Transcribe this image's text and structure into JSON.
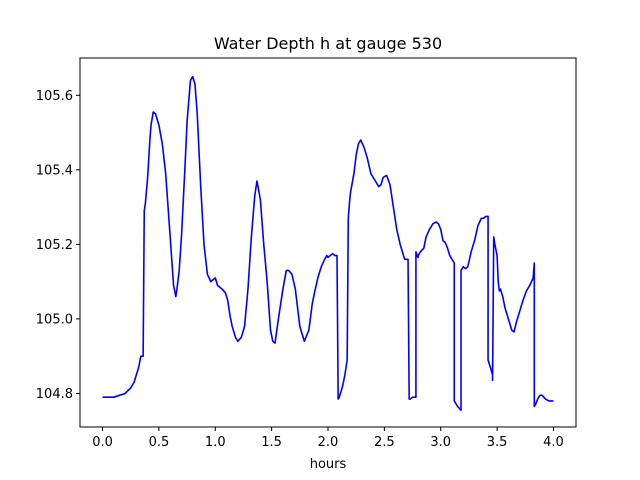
{
  "chart_data": {
    "type": "line",
    "title": "Water Depth h at gauge 530",
    "xlabel": "hours",
    "ylabel": "",
    "xlim": [
      -0.2,
      4.2
    ],
    "ylim": [
      104.71,
      105.7
    ],
    "xticks": [
      0.0,
      0.5,
      1.0,
      1.5,
      2.0,
      2.5,
      3.0,
      3.5,
      4.0
    ],
    "xtick_labels": [
      "0.0",
      "0.5",
      "1.0",
      "1.5",
      "2.0",
      "2.5",
      "3.0",
      "3.5",
      "4.0"
    ],
    "yticks": [
      104.8,
      105.0,
      105.2,
      105.4,
      105.6
    ],
    "ytick_labels": [
      "104.8",
      "105.0",
      "105.2",
      "105.4",
      "105.6"
    ],
    "grid": false,
    "series": [
      {
        "color": "#0000ff",
        "x": [
          0.0,
          0.1,
          0.15,
          0.2,
          0.25,
          0.28,
          0.3,
          0.32,
          0.34,
          0.36,
          0.37,
          0.38,
          0.4,
          0.42,
          0.43,
          0.45,
          0.47,
          0.5,
          0.53,
          0.56,
          0.6,
          0.63,
          0.65,
          0.66,
          0.68,
          0.7,
          0.73,
          0.75,
          0.78,
          0.8,
          0.82,
          0.84,
          0.87,
          0.9,
          0.93,
          0.96,
          1.0,
          1.02,
          1.04,
          1.06,
          1.09,
          1.11,
          1.13,
          1.15,
          1.18,
          1.2,
          1.23,
          1.26,
          1.29,
          1.32,
          1.35,
          1.37,
          1.4,
          1.43,
          1.46,
          1.49,
          1.51,
          1.53,
          1.56,
          1.6,
          1.63,
          1.65,
          1.68,
          1.71,
          1.75,
          1.79,
          1.83,
          1.86,
          1.88,
          1.91,
          1.94,
          1.97,
          1.99,
          2.0,
          2.02,
          2.04,
          2.06,
          2.08,
          2.09,
          2.1,
          2.11,
          2.13,
          2.15,
          2.17,
          2.18,
          2.19,
          2.2,
          2.23,
          2.25,
          2.27,
          2.29,
          2.32,
          2.35,
          2.38,
          2.41,
          2.43,
          2.45,
          2.47,
          2.49,
          2.52,
          2.55,
          2.58,
          2.61,
          2.64,
          2.68,
          2.71,
          2.72,
          2.73,
          2.75,
          2.77,
          2.78,
          2.78,
          2.79,
          2.8,
          2.8,
          2.82,
          2.85,
          2.87,
          2.9,
          2.93,
          2.96,
          2.98,
          3.0,
          3.02,
          3.04,
          3.06,
          3.08,
          3.1,
          3.12,
          3.12,
          3.15,
          3.18,
          3.18,
          3.2,
          3.22,
          3.24,
          3.27,
          3.3,
          3.33,
          3.36,
          3.38,
          3.4,
          3.42,
          3.42,
          3.44,
          3.46,
          3.46,
          3.47,
          3.48,
          3.5,
          3.51,
          3.52,
          3.53,
          3.55,
          3.57,
          3.59,
          3.61,
          3.63,
          3.65,
          3.67,
          3.7,
          3.73,
          3.76,
          3.79,
          3.82,
          3.83,
          3.83,
          3.84,
          3.86,
          3.88,
          3.9,
          3.93,
          3.96,
          4.0
        ],
        "y": [
          104.79,
          104.79,
          104.795,
          104.8,
          104.815,
          104.83,
          104.85,
          104.87,
          104.9,
          104.9,
          105.29,
          105.31,
          105.38,
          105.48,
          105.52,
          105.555,
          105.55,
          105.52,
          105.47,
          105.39,
          105.22,
          105.09,
          105.06,
          105.08,
          105.13,
          105.22,
          105.4,
          105.53,
          105.64,
          105.65,
          105.63,
          105.55,
          105.36,
          105.2,
          105.12,
          105.1,
          105.11,
          105.09,
          105.085,
          105.08,
          105.07,
          105.05,
          105.01,
          104.98,
          104.95,
          104.94,
          104.95,
          104.98,
          105.08,
          105.22,
          105.33,
          105.37,
          105.32,
          105.2,
          105.1,
          104.97,
          104.94,
          104.935,
          105.0,
          105.08,
          105.13,
          105.13,
          105.12,
          105.08,
          104.98,
          104.94,
          104.97,
          105.04,
          105.07,
          105.11,
          105.14,
          105.16,
          105.17,
          105.165,
          105.17,
          105.175,
          105.17,
          105.17,
          104.785,
          104.79,
          104.8,
          104.82,
          104.85,
          104.89,
          105.27,
          105.31,
          105.34,
          105.39,
          105.44,
          105.47,
          105.48,
          105.46,
          105.43,
          105.39,
          105.375,
          105.365,
          105.355,
          105.36,
          105.38,
          105.385,
          105.36,
          105.3,
          105.24,
          105.2,
          105.16,
          105.16,
          104.785,
          104.785,
          104.79,
          104.79,
          104.79,
          105.18,
          105.17,
          105.165,
          105.17,
          105.18,
          105.19,
          105.22,
          105.24,
          105.255,
          105.26,
          105.255,
          105.24,
          105.21,
          105.205,
          105.19,
          105.17,
          105.16,
          105.15,
          104.78,
          104.765,
          104.755,
          105.13,
          105.14,
          105.135,
          105.14,
          105.18,
          105.21,
          105.25,
          105.27,
          105.27,
          105.275,
          105.275,
          104.89,
          104.87,
          104.85,
          104.835,
          105.22,
          105.2,
          105.17,
          105.1,
          105.075,
          105.08,
          105.06,
          105.03,
          105.01,
          104.99,
          104.97,
          104.965,
          104.99,
          105.02,
          105.05,
          105.075,
          105.09,
          105.11,
          105.15,
          104.765,
          104.77,
          104.785,
          104.795,
          104.795,
          104.785,
          104.78,
          104.78
        ]
      }
    ]
  }
}
